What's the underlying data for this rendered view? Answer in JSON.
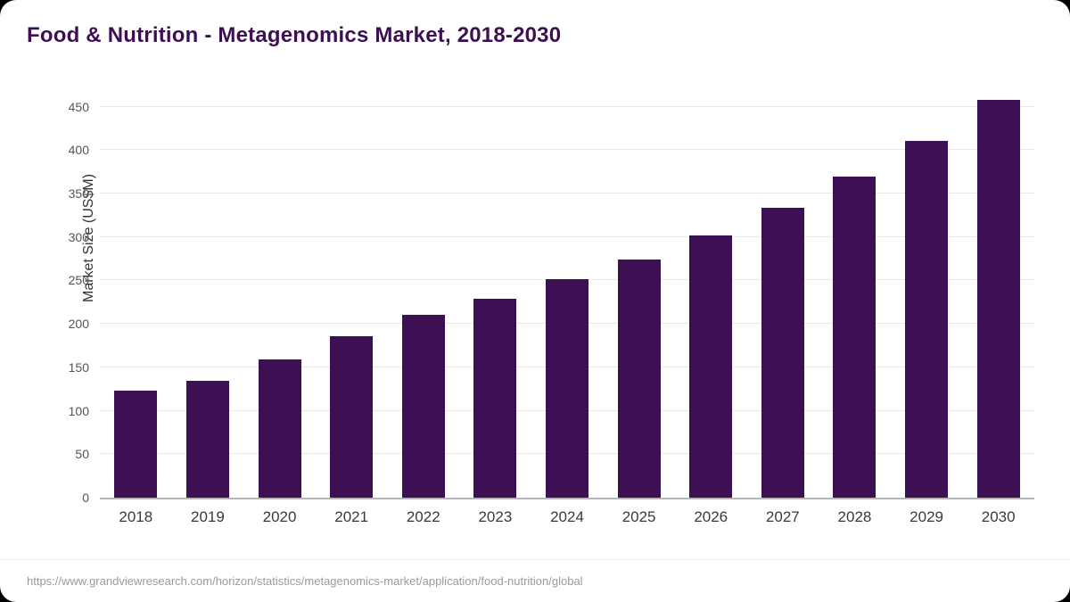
{
  "title": "Food & Nutrition - Metagenomics Market, 2018-2030",
  "source_url": "https://www.grandviewresearch.com/horizon/statistics/metagenomics-market/application/food-nutrition/global",
  "colors": {
    "bar": "#3d1053",
    "title": "#3d1053",
    "gridline": "#e8e8e8",
    "axis": "#b5b5b5"
  },
  "chart_data": {
    "type": "bar",
    "title": "Food & Nutrition - Metagenomics Market, 2018-2030",
    "categories": [
      "2018",
      "2019",
      "2020",
      "2021",
      "2022",
      "2023",
      "2024",
      "2025",
      "2026",
      "2027",
      "2028",
      "2029",
      "2030"
    ],
    "values": [
      123,
      134,
      159,
      186,
      210,
      229,
      251,
      274,
      302,
      334,
      370,
      411,
      458
    ],
    "xlabel": "",
    "ylabel": "Market Size (US$M)",
    "ylim": [
      0,
      465
    ],
    "yticks": [
      0,
      50,
      100,
      150,
      200,
      250,
      300,
      350,
      400,
      450
    ],
    "grid": true,
    "legend": false,
    "bar_color": "#3d1053"
  }
}
